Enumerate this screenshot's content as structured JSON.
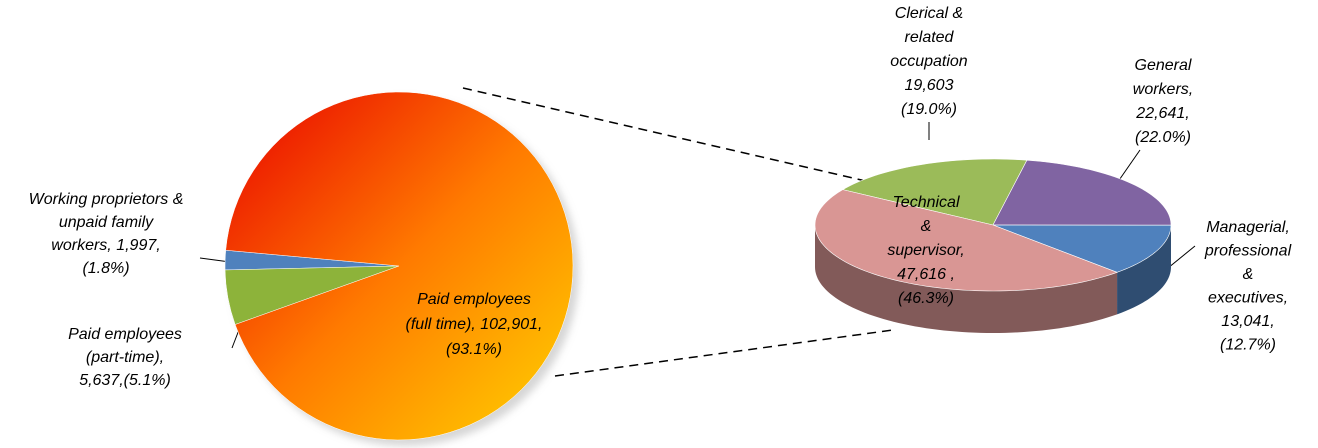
{
  "chart_data": [
    {
      "type": "pie",
      "values": [
        1997,
        5637,
        102901
      ],
      "labels": [
        [
          "Working proprietors &",
          "unpaid family",
          "workers, 1,997,",
          "(1.8%)"
        ],
        [
          "Paid employees",
          "(part-time),",
          "5,637,(5.1%)"
        ],
        [
          "Paid employees",
          "(full time), 102,901,",
          "(93.1%)"
        ]
      ],
      "colors": [
        "#4f81bd",
        "#8db33a",
        "#ff4000"
      ],
      "gradient_colors": [
        "#e80000",
        "#ff7a00",
        "#ffd400"
      ]
    },
    {
      "type": "pie3d",
      "values": [
        19603,
        22641,
        13041,
        47616
      ],
      "labels": [
        [
          "Clerical &",
          "related",
          "occupation",
          "19,603",
          "(19.0%)"
        ],
        [
          "General",
          "workers,",
          "22,641,",
          "(22.0%)"
        ],
        [
          "Managerial,",
          "professional",
          "&",
          "executives,",
          "13,041,",
          "(12.7%)"
        ],
        [
          "Technical",
          "&",
          "supervisor,",
          "47,616 ,",
          "(46.3%)"
        ]
      ],
      "colors": [
        "#9bbb59",
        "#8064a2",
        "#4f81bd",
        "#d99694"
      ]
    }
  ]
}
